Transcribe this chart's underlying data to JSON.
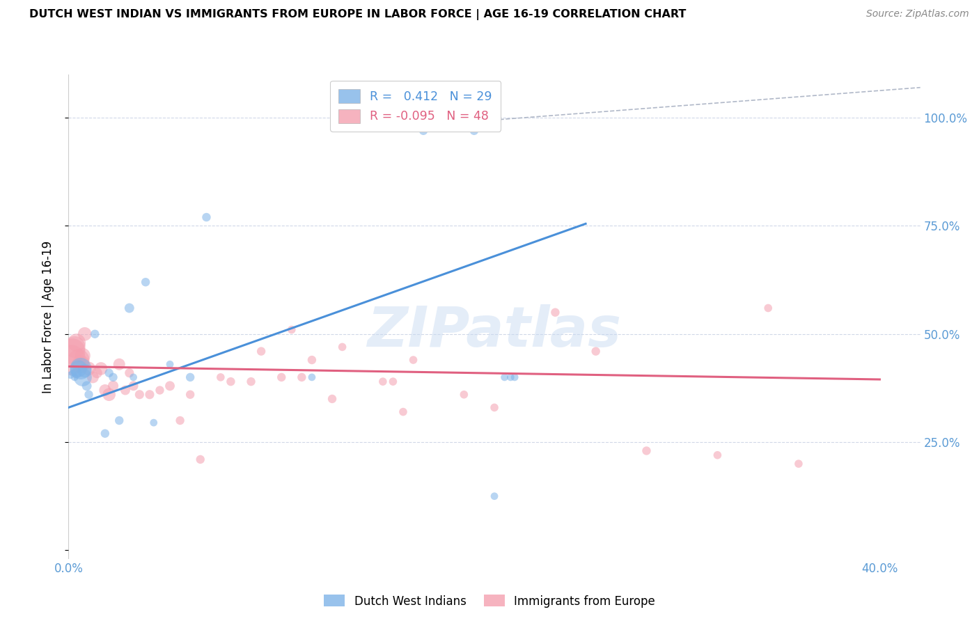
{
  "title": "DUTCH WEST INDIAN VS IMMIGRANTS FROM EUROPE IN LABOR FORCE | AGE 16-19 CORRELATION CHART",
  "source": "Source: ZipAtlas.com",
  "ylabel": "In Labor Force | Age 16-19",
  "xlim": [
    0.0,
    0.42
  ],
  "ylim": [
    -0.02,
    1.1
  ],
  "ytick_vals": [
    0.0,
    0.25,
    0.5,
    0.75,
    1.0
  ],
  "ytick_labels": [
    "",
    "25.0%",
    "50.0%",
    "75.0%",
    "100.0%"
  ],
  "xtick_vals": [
    0.0,
    0.05,
    0.1,
    0.15,
    0.2,
    0.25,
    0.3,
    0.35,
    0.4
  ],
  "xtick_labels": [
    "0.0%",
    "",
    "",
    "",
    "",
    "",
    "",
    "",
    "40.0%"
  ],
  "legend1_label": "Dutch West Indians",
  "legend2_label": "Immigrants from Europe",
  "r1": 0.412,
  "n1": 29,
  "r2": -0.095,
  "n2": 48,
  "blue_color": "#7eb3e8",
  "pink_color": "#f4a0b0",
  "blue_line_color": "#4a90d9",
  "pink_line_color": "#e06080",
  "axis_color": "#5b9bd5",
  "grid_color": "#d0d8e8",
  "watermark": "ZIPatlas",
  "blue_line_x0": 0.0,
  "blue_line_y0": 0.33,
  "blue_line_x1": 0.255,
  "blue_line_y1": 0.755,
  "pink_line_x0": 0.0,
  "pink_line_y0": 0.425,
  "pink_line_x1": 0.4,
  "pink_line_y1": 0.395,
  "ref_line_x0": 0.14,
  "ref_line_y0": 0.97,
  "ref_line_x1": 0.42,
  "ref_line_y1": 1.07,
  "blue_scatter_x": [
    0.001,
    0.002,
    0.003,
    0.004,
    0.005,
    0.006,
    0.007,
    0.008,
    0.009,
    0.01,
    0.013,
    0.018,
    0.02,
    0.022,
    0.025,
    0.03,
    0.032,
    0.038,
    0.042,
    0.05,
    0.06,
    0.068,
    0.12,
    0.175,
    0.2,
    0.21,
    0.215,
    0.218,
    0.22
  ],
  "blue_scatter_y": [
    0.405,
    0.41,
    0.4,
    0.41,
    0.42,
    0.42,
    0.4,
    0.415,
    0.38,
    0.36,
    0.5,
    0.27,
    0.41,
    0.4,
    0.3,
    0.56,
    0.4,
    0.62,
    0.295,
    0.43,
    0.4,
    0.77,
    0.4,
    0.97,
    0.97,
    0.125,
    0.4,
    0.4,
    0.4
  ],
  "blue_scatter_size": [
    60,
    50,
    60,
    120,
    300,
    500,
    350,
    200,
    100,
    80,
    80,
    80,
    80,
    80,
    80,
    100,
    60,
    80,
    60,
    60,
    80,
    80,
    60,
    80,
    80,
    60,
    60,
    60,
    60
  ],
  "pink_scatter_x": [
    0.001,
    0.002,
    0.003,
    0.004,
    0.005,
    0.006,
    0.007,
    0.008,
    0.01,
    0.012,
    0.014,
    0.016,
    0.018,
    0.02,
    0.022,
    0.025,
    0.028,
    0.03,
    0.032,
    0.035,
    0.04,
    0.045,
    0.05,
    0.055,
    0.06,
    0.065,
    0.075,
    0.08,
    0.09,
    0.095,
    0.105,
    0.11,
    0.115,
    0.12,
    0.13,
    0.135,
    0.155,
    0.16,
    0.165,
    0.17,
    0.195,
    0.21,
    0.24,
    0.26,
    0.285,
    0.32,
    0.345,
    0.36
  ],
  "pink_scatter_y": [
    0.44,
    0.46,
    0.47,
    0.48,
    0.44,
    0.43,
    0.45,
    0.5,
    0.42,
    0.4,
    0.41,
    0.42,
    0.37,
    0.36,
    0.38,
    0.43,
    0.37,
    0.41,
    0.38,
    0.36,
    0.36,
    0.37,
    0.38,
    0.3,
    0.36,
    0.21,
    0.4,
    0.39,
    0.39,
    0.46,
    0.4,
    0.51,
    0.4,
    0.44,
    0.35,
    0.47,
    0.39,
    0.39,
    0.32,
    0.44,
    0.36,
    0.33,
    0.55,
    0.46,
    0.23,
    0.22,
    0.56,
    0.2
  ],
  "pink_scatter_size": [
    1000,
    700,
    500,
    350,
    500,
    350,
    250,
    200,
    200,
    150,
    120,
    180,
    150,
    180,
    120,
    150,
    100,
    90,
    100,
    90,
    90,
    80,
    100,
    80,
    80,
    80,
    70,
    80,
    80,
    80,
    80,
    70,
    80,
    80,
    80,
    70,
    70,
    70,
    70,
    70,
    70,
    70,
    80,
    80,
    80,
    70,
    70,
    70
  ]
}
